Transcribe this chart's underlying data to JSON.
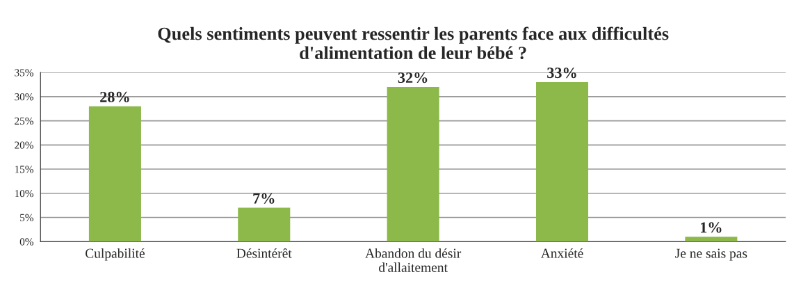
{
  "chart_data": {
    "type": "bar",
    "title": "Quels sentiments peuvent ressentir les parents face aux difficultés\nd'alimentation de leur bébé ?",
    "categories": [
      "Culpabilité",
      "Désintérêt",
      "Abandon du désir\nd'allaitement",
      "Anxiété",
      "Je ne sais pas"
    ],
    "values": [
      28,
      7,
      32,
      33,
      1
    ],
    "value_labels": [
      "28%",
      "7%",
      "32%",
      "33%",
      "1%"
    ],
    "color": "#8db84a",
    "ylim": [
      0,
      35
    ],
    "yticks": [
      {
        "value": 0,
        "label": "0%"
      },
      {
        "value": 5,
        "label": "5%"
      },
      {
        "value": 10,
        "label": "10%"
      },
      {
        "value": 15,
        "label": "15%"
      },
      {
        "value": 20,
        "label": "20%"
      },
      {
        "value": 25,
        "label": "25%"
      },
      {
        "value": 30,
        "label": "30%"
      },
      {
        "value": 35,
        "label": "35%"
      }
    ],
    "grid": "y",
    "legend": false
  }
}
